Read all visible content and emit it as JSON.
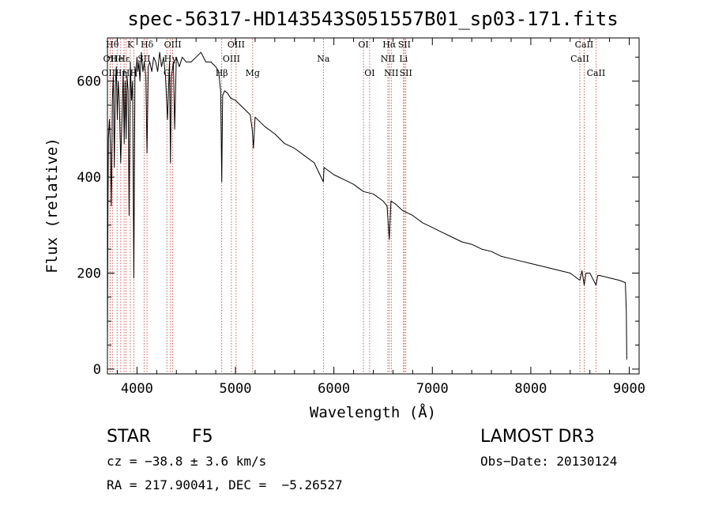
{
  "chart_data": {
    "type": "line",
    "title": "spec-56317-HD143543S051557B01_sp03-171.fits",
    "xlabel": "Wavelength (Å)",
    "ylabel": "Flux (relative)",
    "xlim": [
      3700,
      9100
    ],
    "ylim": [
      -10,
      690
    ],
    "xticks": [
      4000,
      5000,
      6000,
      7000,
      8000,
      9000
    ],
    "xtick_labels": [
      "4000",
      "5000",
      "6000",
      "7000",
      "8000",
      "9000"
    ],
    "yticks": [
      0,
      200,
      400,
      600
    ],
    "ytick_labels": [
      "0",
      "200",
      "400",
      "600"
    ],
    "series": [
      {
        "name": "spectrum",
        "x": [
          3700,
          3705,
          3710,
          3720,
          3730,
          3740,
          3750,
          3760,
          3770,
          3780,
          3790,
          3800,
          3810,
          3820,
          3835,
          3850,
          3860,
          3870,
          3880,
          3889,
          3900,
          3910,
          3920,
          3933,
          3945,
          3955,
          3968,
          3980,
          3990,
          4000,
          4010,
          4020,
          4030,
          4045,
          4060,
          4075,
          4090,
          4102,
          4115,
          4130,
          4150,
          4170,
          4190,
          4210,
          4230,
          4250,
          4270,
          4290,
          4310,
          4330,
          4340,
          4350,
          4370,
          4383,
          4400,
          4430,
          4460,
          4500,
          4550,
          4600,
          4650,
          4700,
          4750,
          4800,
          4830,
          4850,
          4861,
          4870,
          4890,
          4920,
          4950,
          5000,
          5050,
          5100,
          5150,
          5170,
          5183,
          5200,
          5250,
          5300,
          5400,
          5500,
          5600,
          5700,
          5800,
          5893,
          5900,
          6000,
          6100,
          6200,
          6300,
          6400,
          6500,
          6540,
          6563,
          6580,
          6620,
          6700,
          6800,
          6900,
          7000,
          7100,
          7200,
          7300,
          7400,
          7500,
          7600,
          7700,
          7800,
          7900,
          8000,
          8100,
          8200,
          8300,
          8400,
          8498,
          8520,
          8542,
          8560,
          8600,
          8662,
          8680,
          8700,
          8800,
          8900,
          8960,
          8970,
          8975
        ],
        "values": [
          40,
          320,
          480,
          520,
          470,
          340,
          560,
          610,
          420,
          590,
          630,
          520,
          600,
          560,
          430,
          540,
          620,
          470,
          600,
          480,
          610,
          580,
          320,
          640,
          560,
          600,
          190,
          630,
          610,
          650,
          620,
          640,
          600,
          660,
          620,
          640,
          610,
          450,
          630,
          640,
          620,
          650,
          640,
          620,
          660,
          630,
          650,
          610,
          520,
          640,
          430,
          610,
          640,
          500,
          650,
          630,
          650,
          640,
          640,
          650,
          660,
          640,
          640,
          630,
          620,
          580,
          390,
          570,
          580,
          575,
          565,
          560,
          550,
          540,
          530,
          500,
          460,
          525,
          515,
          505,
          490,
          470,
          460,
          445,
          430,
          390,
          420,
          405,
          395,
          385,
          370,
          365,
          350,
          340,
          270,
          350,
          345,
          330,
          320,
          305,
          295,
          285,
          275,
          265,
          260,
          250,
          245,
          235,
          230,
          225,
          220,
          215,
          210,
          205,
          200,
          185,
          205,
          175,
          200,
          200,
          175,
          195,
          195,
          190,
          185,
          180,
          120,
          20
        ]
      }
    ],
    "lines_of_interest": [
      {
        "wavelength": 3727,
        "label": "OII",
        "row": 1
      },
      {
        "wavelength": 3727,
        "label": "OIII",
        "row": 2
      },
      {
        "wavelength": 3750,
        "label": "Hθ",
        "row": 0
      },
      {
        "wavelength": 3798,
        "label": "He",
        "row": 1
      },
      {
        "wavelength": 3835,
        "label": "Hη",
        "row": 2
      },
      {
        "wavelength": 3869,
        "label": "Hε",
        "row": 1
      },
      {
        "wavelength": 3889,
        "label": "H",
        "row": 2
      },
      {
        "wavelength": 3933,
        "label": "K",
        "row": 0
      },
      {
        "wavelength": 3968,
        "label": "H",
        "row": 2
      },
      {
        "wavelength": 4072,
        "label": "SII",
        "row": 1
      },
      {
        "wavelength": 4102,
        "label": "Hδ",
        "row": 0
      },
      {
        "wavelength": 4304,
        "label": "G",
        "row": 2
      },
      {
        "wavelength": 4340,
        "label": "Hγ",
        "row": 1
      },
      {
        "wavelength": 4363,
        "label": "OIII",
        "row": 0
      },
      {
        "wavelength": 4861,
        "label": "Hβ",
        "row": 2
      },
      {
        "wavelength": 4959,
        "label": "OIII",
        "row": 1
      },
      {
        "wavelength": 5007,
        "label": "OIII",
        "row": 0
      },
      {
        "wavelength": 5175,
        "label": "Mg",
        "row": 2
      },
      {
        "wavelength": 5893,
        "label": "Na",
        "row": 1
      },
      {
        "wavelength": 6300,
        "label": "OI",
        "row": 0
      },
      {
        "wavelength": 6363,
        "label": "OI",
        "row": 2
      },
      {
        "wavelength": 6548,
        "label": "NII",
        "row": 1
      },
      {
        "wavelength": 6563,
        "label": "Hα",
        "row": 0
      },
      {
        "wavelength": 6583,
        "label": "NII",
        "row": 2
      },
      {
        "wavelength": 6707,
        "label": "Li",
        "row": 1
      },
      {
        "wavelength": 6716,
        "label": "SII",
        "row": 0
      },
      {
        "wavelength": 6731,
        "label": "SII",
        "row": 2
      },
      {
        "wavelength": 8498,
        "label": "CaII",
        "row": 1
      },
      {
        "wavelength": 8542,
        "label": "CaII",
        "row": 0
      },
      {
        "wavelength": 8662,
        "label": "CaII",
        "row": 2
      }
    ]
  },
  "info": {
    "class_label": "STAR",
    "subclass": "F5",
    "survey": "LAMOST DR3",
    "cz": "cz = −38.8 ± 3.6 km/s",
    "obs_date": "Obs−Date: 20130124",
    "coords": "RA = 217.90041, DEC =  −5.26527"
  },
  "colors": {
    "spectrum": "#000000",
    "line_marker": "#c0392b",
    "axes": "#000000"
  }
}
